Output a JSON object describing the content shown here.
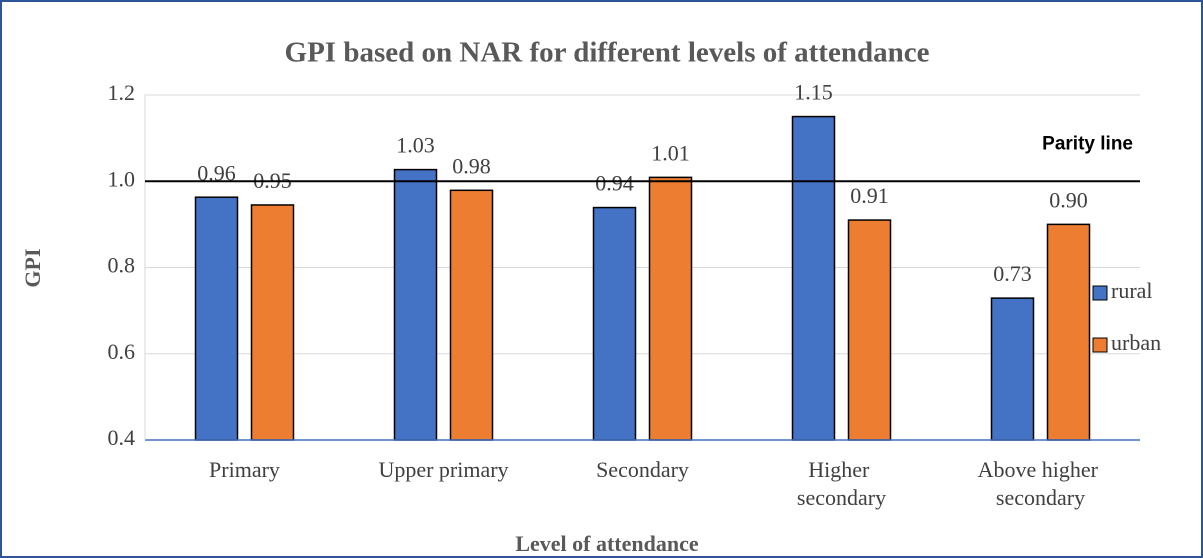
{
  "chart_data": {
    "type": "bar",
    "title": "GPI based on NAR for different levels of attendance",
    "x_label": "Level of attendance",
    "y_label": "GPI",
    "categories": [
      "Primary",
      "Upper primary",
      "Secondary",
      "Higher secondary",
      "Above higher secondary"
    ],
    "series": [
      {
        "name": "rural",
        "color": "#4472c4",
        "values": [
          0.963,
          1.027,
          0.939,
          1.15,
          0.729
        ],
        "value_labels": [
          "0.96",
          "1.03",
          "0.94",
          "1.15",
          "0.73"
        ]
      },
      {
        "name": "urban",
        "color": "#ed7d31",
        "values": [
          0.945,
          0.979,
          1.009,
          0.91,
          0.9
        ],
        "value_labels": [
          "0.95",
          "0.98",
          "1.01",
          "0.91",
          "0.90"
        ]
      }
    ],
    "ylim": [
      0.4,
      1.2
    ],
    "yticks": [
      0.4,
      0.6,
      0.8,
      {
        "value": 1,
        "label": "1.0"
      },
      1.2
    ],
    "grid": true,
    "legend": "right",
    "parity_line": {
      "value": 1,
      "label": "Parity line"
    }
  }
}
